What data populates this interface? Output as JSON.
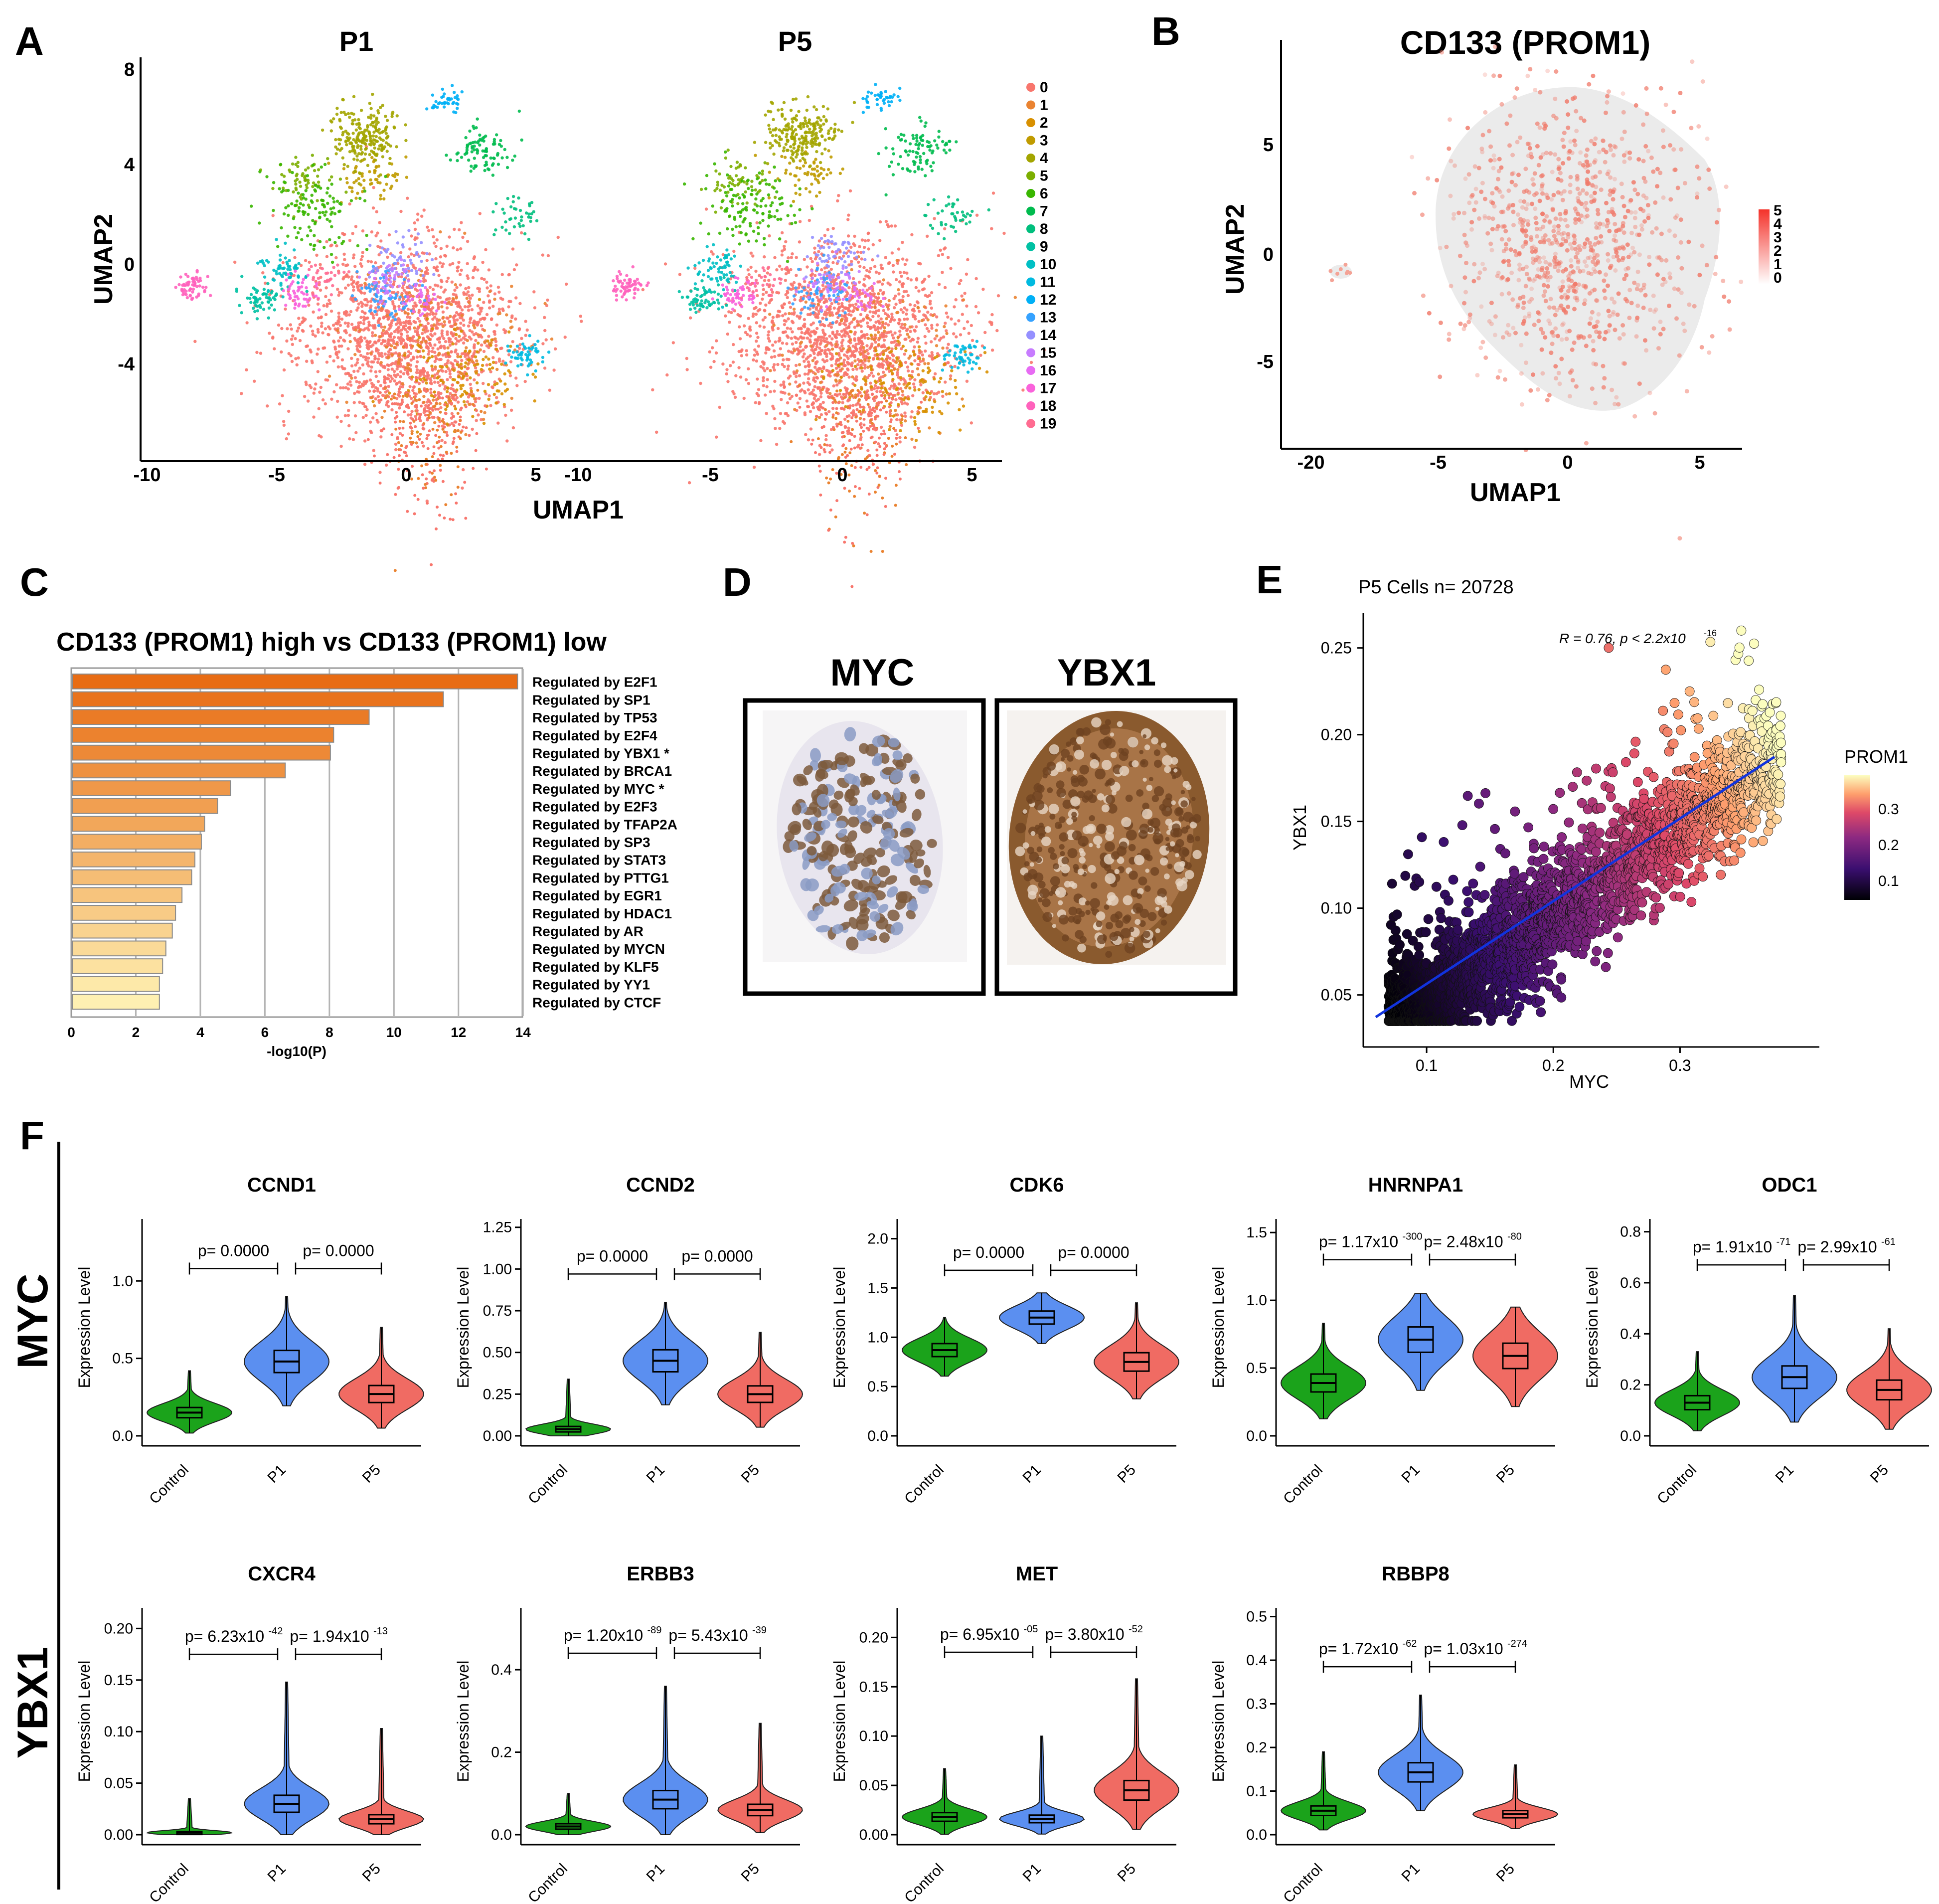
{
  "panels": {
    "A": {
      "label": "A",
      "plots": [
        {
          "title": "P1",
          "x_ticks": [
            "-10",
            "-5",
            "0",
            "5"
          ]
        },
        {
          "title": "P5",
          "x_ticks": [
            "-10",
            "-5",
            "0",
            "5"
          ]
        }
      ],
      "y_ticks": [
        "8",
        "4",
        "0",
        "-4"
      ],
      "xlabel": "UMAP1",
      "ylabel": "UMAP2",
      "legend": [
        "0",
        "1",
        "2",
        "3",
        "4",
        "5",
        "6",
        "7",
        "8",
        "9",
        "10",
        "11",
        "12",
        "13",
        "14",
        "15",
        "16",
        "17",
        "18",
        "19"
      ],
      "legend_colors": [
        "#F8766D",
        "#EA8331",
        "#D89000",
        "#C09B00",
        "#A3A500",
        "#7CAE00",
        "#39B600",
        "#00BB4E",
        "#00BF7D",
        "#00C1A3",
        "#00BFC4",
        "#00BAE0",
        "#00B0F6",
        "#35A2FF",
        "#9590FF",
        "#C77CFF",
        "#E76BF3",
        "#FA62DB",
        "#FF62BC",
        "#FF6C91"
      ]
    },
    "B": {
      "label": "B",
      "title": "CD133 (PROM1)",
      "x_ticks": [
        "-20",
        "-5",
        "0",
        "5"
      ],
      "y_ticks": [
        "5",
        "0",
        "-5"
      ],
      "xlabel": "UMAP1",
      "ylabel": "UMAP2",
      "colorbar_ticks": [
        "5",
        "4",
        "3",
        "2",
        "1",
        "0"
      ]
    },
    "C": {
      "label": "C",
      "title": "CD133 (PROM1) high vs CD133 (PROM1) low",
      "xlabel": "-log10(P)",
      "x_ticks": [
        "0",
        "2",
        "4",
        "6",
        "8",
        "10",
        "12",
        "14"
      ]
    },
    "D": {
      "label": "D",
      "images": [
        {
          "title": "MYC"
        },
        {
          "title": "YBX1"
        }
      ]
    },
    "E": {
      "label": "E",
      "header": "P5 Cells    n= 20728",
      "stat": "R = 0.76, p < 2.2x10",
      "stat_exp": "-16",
      "xlabel": "MYC",
      "ylabel": "YBX1",
      "x_ticks": [
        "0.1",
        "0.2",
        "0.3"
      ],
      "y_ticks": [
        "0.25",
        "0.20",
        "0.15",
        "0.10",
        "0.05"
      ],
      "colorbar_title": "PROM1",
      "colorbar_ticks": [
        "0.3",
        "0.2",
        "0.1"
      ]
    },
    "F": {
      "label": "F",
      "group_labels": [
        "MYC",
        "YBX1"
      ],
      "ylabel": "Expression Level",
      "groups": [
        "Control",
        "P1",
        "P5"
      ],
      "group_colors": [
        "#1BA31B",
        "#5B8FF0",
        "#F06B63"
      ],
      "violins": [
        {
          "gene": "CCND1",
          "ymax": 1.4,
          "ticks": [
            "0.0",
            "0.5",
            "1.0"
          ],
          "tick_values": [
            0,
            0.5,
            1.0
          ],
          "medians": [
            0.15,
            0.48,
            0.27
          ],
          "spreads": [
            0.06,
            0.13,
            0.1
          ],
          "tops": [
            0.42,
            0.9,
            0.7
          ],
          "p1": "p= 0.0000",
          "p1e": "",
          "p2": "p= 0.0000",
          "p2e": "",
          "bracket_y": 1.08
        },
        {
          "gene": "CCND2",
          "ymax": 1.3,
          "ticks": [
            "0.00",
            "0.25",
            "0.50",
            "0.75",
            "1.00",
            "1.25"
          ],
          "tick_values": [
            0,
            0.25,
            0.5,
            0.75,
            1.0,
            1.25
          ],
          "medians": [
            0.04,
            0.45,
            0.25
          ],
          "spreads": [
            0.03,
            0.12,
            0.09
          ],
          "tops": [
            0.34,
            0.8,
            0.62
          ],
          "p1": "p= 0.0000",
          "p1e": "",
          "p2": "p= 0.0000",
          "p2e": "",
          "bracket_y": 0.97
        },
        {
          "gene": "CDK6",
          "ymax": 2.2,
          "ticks": [
            "0.0",
            "0.5",
            "1.0",
            "1.5",
            "2.0"
          ],
          "tick_values": [
            0,
            0.5,
            1.0,
            1.5,
            2.0
          ],
          "medians": [
            0.87,
            1.2,
            0.75
          ],
          "spreads": [
            0.12,
            0.12,
            0.17
          ],
          "tops": [
            1.2,
            1.45,
            1.35
          ],
          "p1": "p= 0.0000",
          "p1e": "",
          "p2": "p= 0.0000",
          "p2e": "",
          "bracket_y": 1.68
        },
        {
          "gene": "HNRNPA1",
          "ymax": 1.6,
          "ticks": [
            "0.0",
            "0.5",
            "1.0",
            "1.5"
          ],
          "tick_values": [
            0,
            0.5,
            1.0,
            1.5
          ],
          "medians": [
            0.39,
            0.71,
            0.59
          ],
          "spreads": [
            0.12,
            0.17,
            0.17
          ],
          "tops": [
            0.83,
            1.05,
            0.95
          ],
          "p1": "p= 1.17x10",
          "p1e": "-300",
          "p2": "p= 2.48x10",
          "p2e": "-80",
          "bracket_y": 1.3
        },
        {
          "gene": "ODC1",
          "ymax": 0.85,
          "ticks": [
            "0.0",
            "0.2",
            "0.4",
            "0.6",
            "0.8"
          ],
          "tick_values": [
            0,
            0.2,
            0.4,
            0.6,
            0.8
          ],
          "medians": [
            0.13,
            0.23,
            0.18
          ],
          "spreads": [
            0.05,
            0.08,
            0.07
          ],
          "tops": [
            0.33,
            0.55,
            0.42
          ],
          "p1": "p= 1.91x10",
          "p1e": "-71",
          "p2": "p= 2.99x10",
          "p2e": "-61",
          "bracket_y": 0.67
        },
        {
          "gene": "CXCR4",
          "ymax": 0.22,
          "ticks": [
            "0.00",
            "0.05",
            "0.10",
            "0.15",
            "0.20"
          ],
          "tick_values": [
            0,
            0.05,
            0.1,
            0.15,
            0.2
          ],
          "medians": [
            0.002,
            0.03,
            0.015
          ],
          "spreads": [
            0.002,
            0.015,
            0.008
          ],
          "tops": [
            0.035,
            0.148,
            0.103
          ],
          "p1": "p= 6.23x10",
          "p1e": "-42",
          "p2": "p= 1.94x10",
          "p2e": "-13",
          "bracket_y": 0.175
        },
        {
          "gene": "ERBB3",
          "ymax": 0.55,
          "ticks": [
            "0.0",
            "0.2",
            "0.4"
          ],
          "tick_values": [
            0,
            0.2,
            0.4
          ],
          "medians": [
            0.02,
            0.085,
            0.06
          ],
          "spreads": [
            0.012,
            0.04,
            0.025
          ],
          "tops": [
            0.1,
            0.36,
            0.27
          ],
          "p1": "p= 1.20x10",
          "p1e": "-89",
          "p2": "p= 5.43x10",
          "p2e": "-39",
          "bracket_y": 0.44
        },
        {
          "gene": "MET",
          "ymax": 0.23,
          "ticks": [
            "0.00",
            "0.05",
            "0.10",
            "0.15",
            "0.20"
          ],
          "tick_values": [
            0,
            0.05,
            0.1,
            0.15,
            0.2
          ],
          "medians": [
            0.018,
            0.016,
            0.045
          ],
          "spreads": [
            0.008,
            0.007,
            0.018
          ],
          "tops": [
            0.067,
            0.1,
            0.158
          ],
          "p1": "p= 6.95x10",
          "p1e": "-05",
          "p2": "p= 3.80x10",
          "p2e": "-52",
          "bracket_y": 0.185
        },
        {
          "gene": "RBBP8",
          "ymax": 0.52,
          "ticks": [
            "0.0",
            "0.1",
            "0.2",
            "0.3",
            "0.4",
            "0.5"
          ],
          "tick_values": [
            0,
            0.1,
            0.2,
            0.3,
            0.4,
            0.5
          ],
          "medians": [
            0.055,
            0.143,
            0.047
          ],
          "spreads": [
            0.02,
            0.04,
            0.015
          ],
          "tops": [
            0.19,
            0.32,
            0.16
          ],
          "p1": "p= 1.72x10",
          "p1e": "-62",
          "p2": "p= 1.03x10",
          "p2e": "-274",
          "bracket_y": 0.385
        }
      ]
    }
  },
  "chart_data": [
    {
      "type": "bar",
      "title": "CD133 (PROM1) high vs CD133 (PROM1) low",
      "xlabel": "-log10(P)",
      "ylabel": "",
      "xlim": [
        0,
        14
      ],
      "categories": [
        "Regulated by E2F1",
        "Regulated by SP1",
        "Regulated by TP53",
        "Regulated by E2F4",
        "Regulated by YBX1 *",
        "Regulated by BRCA1",
        "Regulated by MYC *",
        "Regulated by E2F3",
        "Regulated by TFAP2A",
        "Regulated by SP3",
        "Regulated by STAT3",
        "Regulated by PTTG1",
        "Regulated by EGR1",
        "Regulated by HDAC1",
        "Regulated by AR",
        "Regulated by MYCN",
        "Regulated by KLF5",
        "Regulated by YY1",
        "Regulated by CTCF"
      ],
      "values": [
        13.8,
        11.5,
        9.2,
        8.1,
        8.0,
        6.6,
        4.9,
        4.5,
        4.1,
        4.0,
        3.8,
        3.7,
        3.4,
        3.2,
        3.1,
        2.9,
        2.8,
        2.7,
        2.7
      ]
    }
  ]
}
